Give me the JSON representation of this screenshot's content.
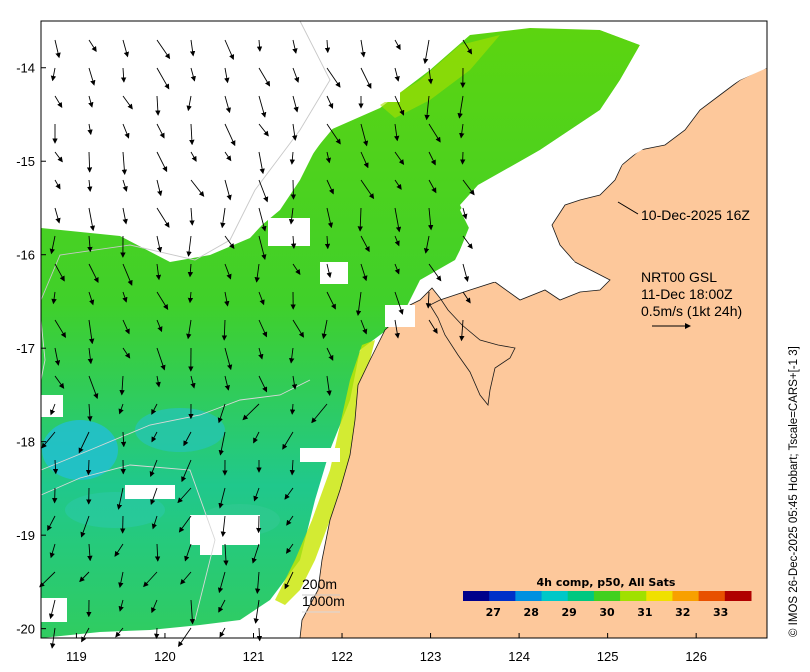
{
  "map": {
    "x_ticks": [
      "119",
      "120",
      "121",
      "122",
      "123",
      "124",
      "125",
      "126"
    ],
    "y_ticks": [
      "-14",
      "-15",
      "-16",
      "-17",
      "-18",
      "-19",
      "-20"
    ],
    "lon_range": [
      118.6,
      126.8
    ],
    "lat_range": [
      -20.1,
      -13.5
    ]
  },
  "annotations": {
    "coast_time": "10-Dec-2025 16Z",
    "product": "NRT00 GSL",
    "valid_time": "11-Dec 18:00Z",
    "scale_arrow": "0.5m/s (1kt 24h)",
    "isobath_200": "200m",
    "isobath_1000": "1000m"
  },
  "colorbar": {
    "title": "4h comp, p50, All Sats",
    "labels": [
      "27",
      "28",
      "29",
      "30",
      "31",
      "32",
      "33"
    ],
    "range": [
      26.2,
      33.8
    ],
    "colors": [
      "#00008b",
      "#0030c8",
      "#0090e0",
      "#00c8c8",
      "#00c880",
      "#40d020",
      "#a0e000",
      "#f0e000",
      "#f8a000",
      "#e85000",
      "#b00000"
    ]
  },
  "credit": "© IMOS 26-Dec-2025 05:45 Hobart; Tscale=CARS+[-1 3]",
  "colors": {
    "land": "#fdc89b",
    "water_warm": "#4cd21a",
    "water_cool": "#2ec8a8",
    "cloud": "#ffffff"
  }
}
